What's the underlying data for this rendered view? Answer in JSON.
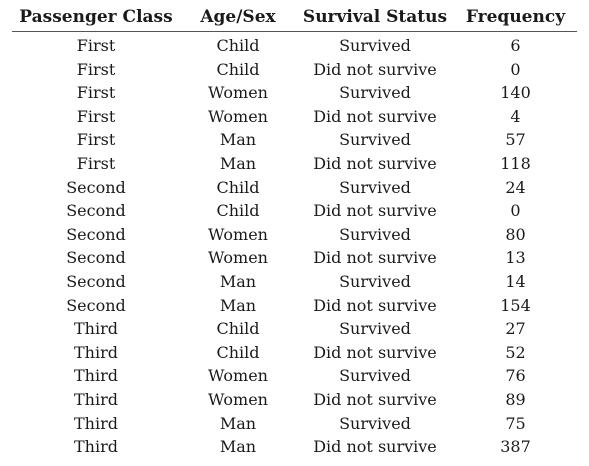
{
  "table": {
    "headers": [
      "Passenger Class",
      "Age/Sex",
      "Survival Status",
      "Frequency"
    ],
    "rows": [
      [
        "First",
        "Child",
        "Survived",
        "6"
      ],
      [
        "First",
        "Child",
        "Did not survive",
        "0"
      ],
      [
        "First",
        "Women",
        "Survived",
        "140"
      ],
      [
        "First",
        "Women",
        "Did not survive",
        "4"
      ],
      [
        "First",
        "Man",
        "Survived",
        "57"
      ],
      [
        "First",
        "Man",
        "Did not survive",
        "118"
      ],
      [
        "Second",
        "Child",
        "Survived",
        "24"
      ],
      [
        "Second",
        "Child",
        "Did not survive",
        "0"
      ],
      [
        "Second",
        "Women",
        "Survived",
        "80"
      ],
      [
        "Second",
        "Women",
        "Did not survive",
        "13"
      ],
      [
        "Second",
        "Man",
        "Survived",
        "14"
      ],
      [
        "Second",
        "Man",
        "Did not survive",
        "154"
      ],
      [
        "Third",
        "Child",
        "Survived",
        "27"
      ],
      [
        "Third",
        "Child",
        "Did not survive",
        "52"
      ],
      [
        "Third",
        "Women",
        "Survived",
        "76"
      ],
      [
        "Third",
        "Women",
        "Did not survive",
        "89"
      ],
      [
        "Third",
        "Man",
        "Survived",
        "75"
      ],
      [
        "Third",
        "Man",
        "Did not survive",
        "387"
      ]
    ]
  }
}
